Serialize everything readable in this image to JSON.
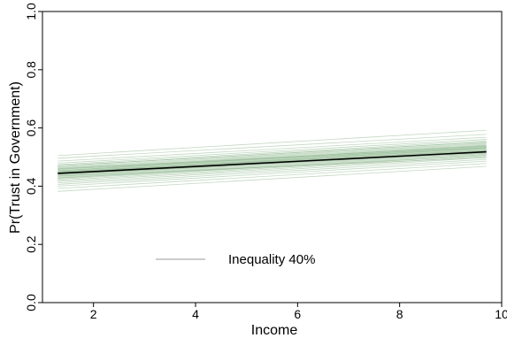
{
  "chart_data": {
    "type": "line",
    "xlabel": "Income",
    "ylabel": "Pr(Trust in Government)",
    "xlim": [
      1,
      10
    ],
    "ylim": [
      0,
      1
    ],
    "x_ticks": [
      "2",
      "4",
      "6",
      "8",
      "10"
    ],
    "y_ticks": [
      "0.0",
      "0.2",
      "0.4",
      "0.6",
      "0.8",
      "1.0"
    ],
    "x_range": [
      1.3,
      9.7
    ],
    "grid": false,
    "legend": {
      "position": "bottom-center",
      "entries": [
        "Inequality 40%"
      ]
    },
    "series": [
      {
        "name": "Inequality 40%",
        "role": "mean",
        "color": "#000000",
        "x": [
          1.3,
          9.7
        ],
        "values": [
          0.444,
          0.518
        ]
      }
    ],
    "simulation_lines": {
      "color": "#8fb88f",
      "x": [
        1.3,
        9.7
      ],
      "start_values": [
        0.382,
        0.392,
        0.4,
        0.406,
        0.411,
        0.416,
        0.42,
        0.424,
        0.427,
        0.43,
        0.433,
        0.436,
        0.438,
        0.44,
        0.442,
        0.444,
        0.446,
        0.448,
        0.45,
        0.452,
        0.454,
        0.457,
        0.46,
        0.463,
        0.466,
        0.47,
        0.474,
        0.479,
        0.486,
        0.496,
        0.505,
        0.435,
        0.447,
        0.453,
        0.441,
        0.46,
        0.428,
        0.47,
        0.449,
        0.458
      ],
      "end_values": [
        0.468,
        0.478,
        0.486,
        0.492,
        0.498,
        0.502,
        0.506,
        0.509,
        0.512,
        0.514,
        0.517,
        0.519,
        0.52,
        0.522,
        0.524,
        0.526,
        0.528,
        0.53,
        0.532,
        0.534,
        0.536,
        0.539,
        0.542,
        0.545,
        0.548,
        0.552,
        0.556,
        0.561,
        0.568,
        0.578,
        0.592,
        0.498,
        0.531,
        0.54,
        0.515,
        0.537,
        0.505,
        0.551,
        0.523,
        0.533
      ]
    }
  }
}
